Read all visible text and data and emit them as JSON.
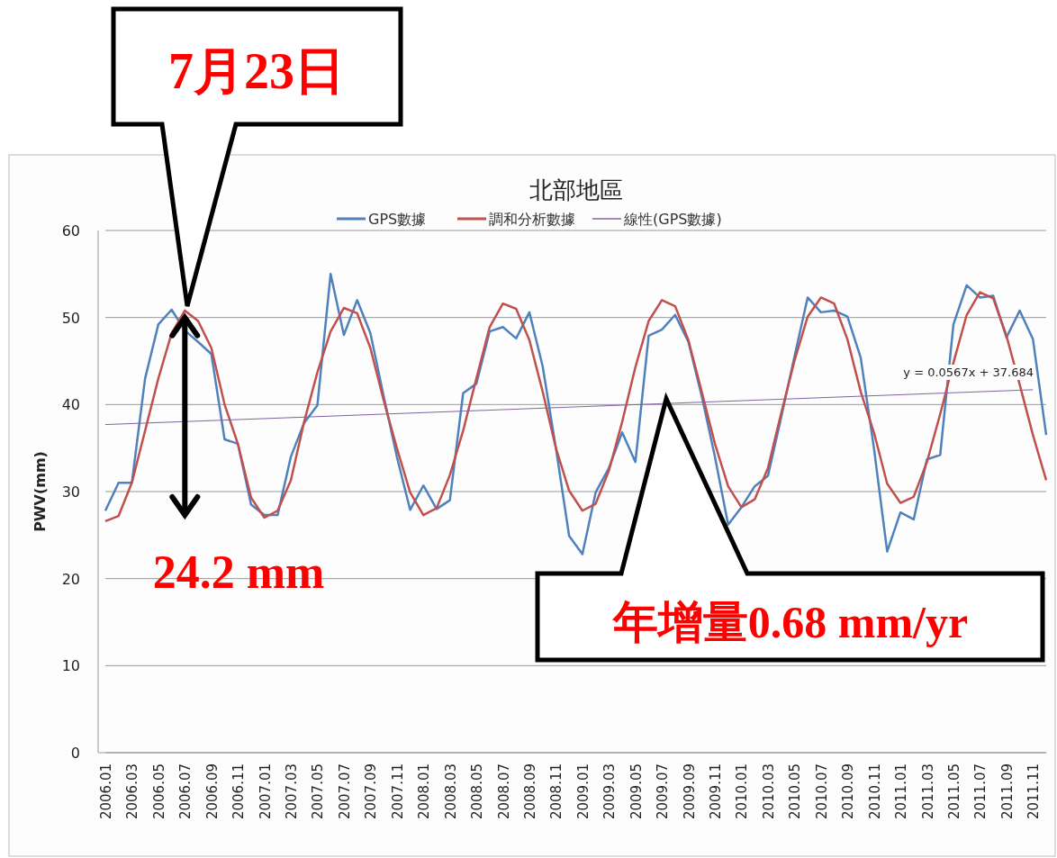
{
  "chart_data": {
    "type": "line",
    "title": "北部地區",
    "ylabel": "PWV(mm)",
    "categories": [
      "2006.01",
      null,
      "2006.03",
      null,
      "2006.05",
      null,
      "2006.07",
      null,
      "2006.09",
      null,
      "2006.11",
      null,
      "2007.01",
      null,
      "2007.03",
      null,
      "2007.05",
      null,
      "2007.07",
      null,
      "2007.09",
      null,
      "2007.11",
      null,
      "2008.01",
      null,
      "2008.03",
      null,
      "2008.05",
      null,
      "2008.07",
      null,
      "2008.09",
      null,
      "2008.11",
      null,
      "2009.01",
      null,
      "2009.03",
      null,
      "2009.05",
      null,
      "2009.07",
      null,
      "2009.09",
      null,
      "2009.11",
      null,
      "2010.01",
      null,
      "2010.03",
      null,
      "2010.05",
      null,
      "2010.07",
      null,
      "2010.09",
      null,
      "2010.11",
      null,
      "2011.01",
      null,
      "2011.03",
      null,
      "2011.05",
      null,
      "2011.07",
      null,
      "2011.09",
      null,
      "2011.11",
      null
    ],
    "series": [
      {
        "name": "GPS數據",
        "color": "#4f81bd",
        "values": [
          27.8,
          31,
          31,
          43,
          49.2,
          50.9,
          48.5,
          47.2,
          45.8,
          36,
          35.5,
          28.5,
          27.3,
          27.3,
          34,
          37.9,
          39.9,
          55,
          48,
          52,
          48.2,
          41,
          34,
          27.9,
          30.7,
          28,
          29,
          41.3,
          42.4,
          48.4,
          48.9,
          47.6,
          50.6,
          44.4,
          35,
          24.9,
          22.8,
          29.9,
          32.7,
          36.8,
          33.4,
          47.9,
          48.6,
          50.3,
          47.2,
          41,
          34,
          26.2,
          28.2,
          30.6,
          31.8,
          38.5,
          45.5,
          52.3,
          50.6,
          50.8,
          50.1,
          45.4,
          35,
          23.1,
          27.6,
          26.8,
          33.7,
          34.2,
          49.2,
          53.7,
          52.3,
          52.5,
          47.7,
          50.8,
          47.5,
          36.5
        ]
      },
      {
        "name": "調和分析數據",
        "color": "#c0504d",
        "values": [
          26.6,
          27.2,
          31,
          37,
          43,
          48.2,
          50.8,
          49.6,
          46.5,
          40,
          35.5,
          29.3,
          27,
          27.8,
          31.3,
          38,
          43.7,
          48.4,
          51.1,
          50.5,
          46.5,
          40.5,
          35,
          29.9,
          27.3,
          28.1,
          31.9,
          37,
          43,
          48.9,
          51.6,
          51,
          47.4,
          41.5,
          35,
          30.1,
          27.8,
          28.6,
          32.4,
          38,
          44.3,
          49.6,
          52,
          51.3,
          47.4,
          41.5,
          35.5,
          30.6,
          28.2,
          29.1,
          32.7,
          39,
          45,
          50.1,
          52.3,
          51.6,
          47.5,
          41.5,
          36.8,
          30.9,
          28.7,
          29.4,
          33.4,
          38.9,
          44.8,
          50.3,
          52.9,
          52.2,
          47.9,
          42.3,
          36.5,
          31.3
        ]
      },
      {
        "name": "線性(GPS數據)",
        "color": "#8064a2",
        "type": "line",
        "x": [
          "2006.01",
          "2011.11"
        ],
        "values": [
          37.7,
          41.7
        ]
      }
    ],
    "ylim": [
      0,
      60
    ],
    "yticks": [
      0,
      10,
      20,
      30,
      40,
      50,
      60
    ],
    "grid": "y",
    "legend": "top",
    "marker": "none",
    "annotations": [
      "7月23日",
      {
        "text": "24.2 mm",
        "x": "2006.07",
        "y": 50
      },
      "年增量0.68 mm/yr",
      "y = 0.0567x + 37.684"
    ]
  }
}
